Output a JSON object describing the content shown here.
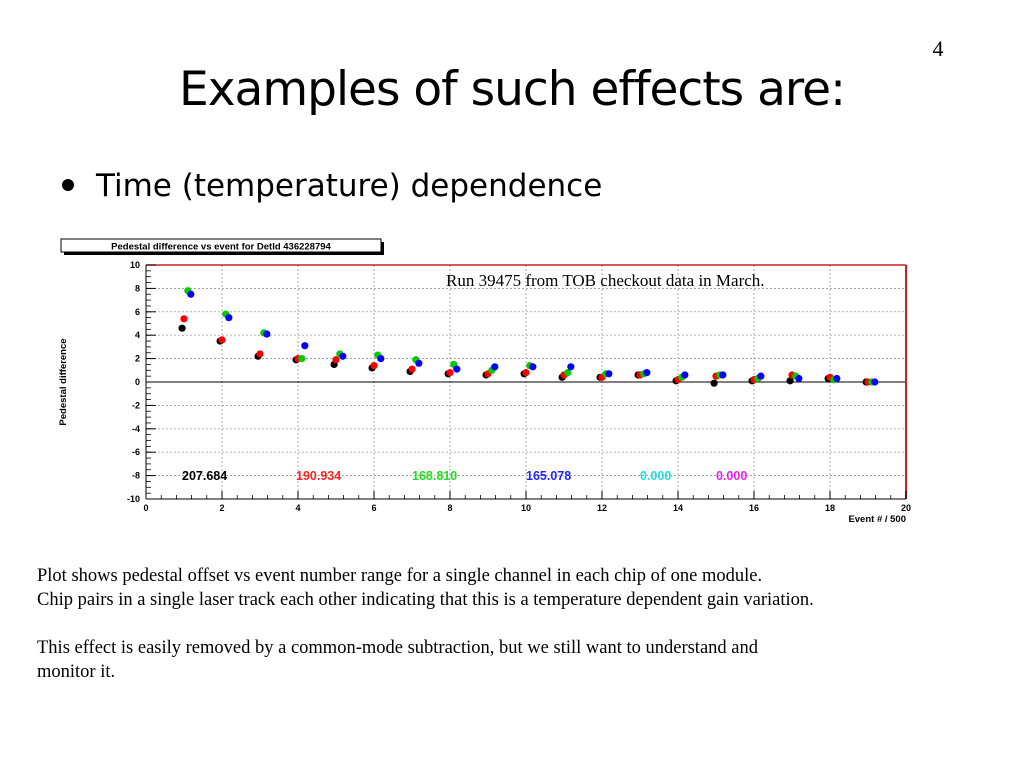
{
  "slide": {
    "number": "4",
    "title": "Examples of such effects are:",
    "bullet": "Time (temperature) dependence",
    "caption_lines": [
      "Plot shows pedestal offset vs  event number range for a single channel in each chip of one module.",
      "Chip pairs in a single laser track each other indicating that this is a temperature dependent gain variation.",
      "This effect is easily removed by a common-mode subtraction, but we still want to understand and",
      "monitor it."
    ]
  },
  "chart_data": {
    "type": "scatter",
    "title": "Pedestal difference vs event for DetId 436228794",
    "annotation": "Run 39475 from TOB checkout data in March.",
    "xlabel": "Event # / 500",
    "ylabel": "Pedestal difference",
    "xlim": [
      0,
      20
    ],
    "ylim": [
      -10,
      10
    ],
    "xticks": [
      "0",
      "2",
      "4",
      "6",
      "8",
      "10",
      "12",
      "14",
      "16",
      "18",
      "20"
    ],
    "yticks": [
      "10",
      "8",
      "6",
      "4",
      "2",
      "0",
      "-2",
      "-4",
      "-6",
      "-8",
      "-10"
    ],
    "grid": true,
    "zero_line": true,
    "colors": {
      "frame_right": "#cc2222",
      "grid": "#888888"
    },
    "series": [
      {
        "color": "#000000",
        "offset": -0.05,
        "x": [
          1,
          2,
          3,
          4,
          5,
          6,
          7,
          8,
          9,
          10,
          11,
          12,
          13,
          14,
          15,
          16,
          17,
          18,
          19
        ],
        "y": [
          4.6,
          3.5,
          2.2,
          1.9,
          1.5,
          1.2,
          0.9,
          0.7,
          0.6,
          0.7,
          0.4,
          0.4,
          0.6,
          0.1,
          -0.1,
          0.1,
          0.1,
          0.3,
          0.0
        ]
      },
      {
        "color": "#ff0000",
        "offset": 0.0,
        "x": [
          1,
          2,
          3,
          4,
          5,
          6,
          7,
          8,
          9,
          10,
          11,
          12,
          13,
          14,
          15,
          16,
          17,
          18,
          19
        ],
        "y": [
          5.4,
          3.6,
          2.4,
          2.0,
          1.9,
          1.4,
          1.1,
          0.8,
          0.7,
          0.8,
          0.6,
          0.4,
          0.6,
          0.2,
          0.5,
          0.2,
          0.6,
          0.4,
          0.0
        ]
      },
      {
        "color": "#00cc00",
        "offset": 0.1,
        "x": [
          1,
          2,
          3,
          4,
          5,
          6,
          7,
          8,
          9,
          10,
          11,
          12,
          13,
          14,
          15,
          16,
          17,
          18,
          19
        ],
        "y": [
          7.8,
          5.8,
          4.2,
          2.0,
          2.4,
          2.3,
          1.9,
          1.5,
          1.0,
          1.4,
          0.8,
          0.7,
          0.7,
          0.4,
          0.6,
          0.3,
          0.5,
          0.2,
          0.0
        ]
      },
      {
        "color": "#0000ff",
        "offset": 0.18,
        "x": [
          1,
          2,
          3,
          4,
          5,
          6,
          7,
          8,
          9,
          10,
          11,
          12,
          13,
          14,
          15,
          16,
          17,
          18,
          19
        ],
        "y": [
          7.5,
          5.5,
          4.1,
          3.1,
          2.2,
          2.0,
          1.6,
          1.1,
          1.3,
          1.3,
          1.3,
          0.7,
          0.8,
          0.6,
          0.6,
          0.5,
          0.3,
          0.3,
          0.0
        ]
      }
    ],
    "stat_labels": [
      {
        "text": "207.684",
        "color": "#000000"
      },
      {
        "text": "190.934",
        "color": "#ff2222"
      },
      {
        "text": "168.810",
        "color": "#22dd22"
      },
      {
        "text": "165.078",
        "color": "#2222ff"
      },
      {
        "text": "0.000",
        "color": "#22dddd"
      },
      {
        "text": "0.000",
        "color": "#ee22ee"
      }
    ]
  }
}
